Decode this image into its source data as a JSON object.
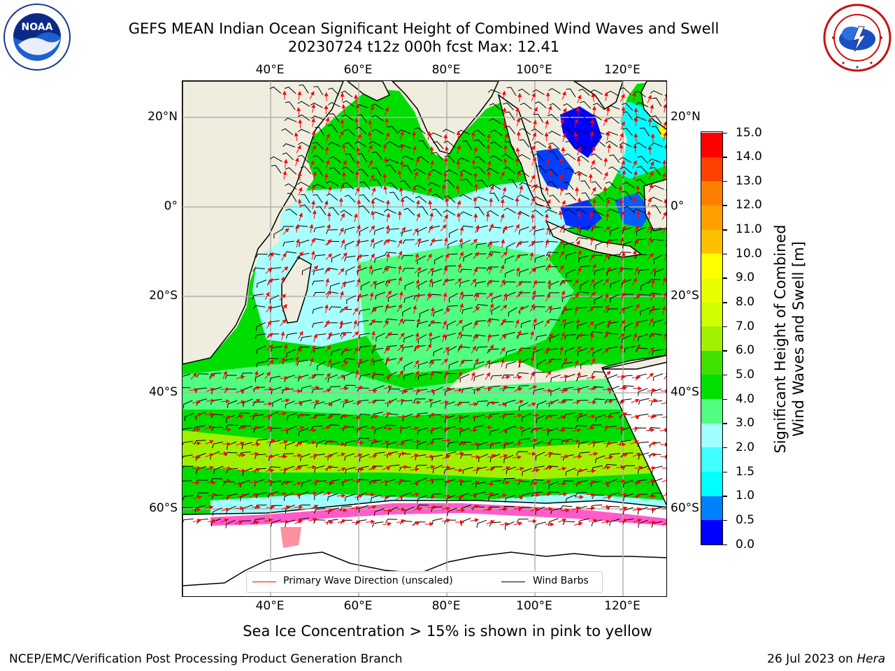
{
  "header": {
    "title_line1": "GEFS MEAN Indian Ocean Significant Height of Combined Wind Waves and Swell",
    "title_line2": "20230724 t12z 000h fcst   Max: 12.41"
  },
  "logos": {
    "left": {
      "icon": "noaa-logo-icon",
      "text": "NOAA"
    },
    "right": {
      "icon": "nws-logo-icon"
    }
  },
  "map": {
    "lon_ticks": [
      "40°E",
      "60°E",
      "80°E",
      "100°E",
      "120°E"
    ],
    "lat_ticks": [
      "20°N",
      "0°",
      "20°S",
      "40°S",
      "60°S"
    ],
    "lon_range": [
      20,
      130
    ],
    "lat_range": [
      -73,
      27
    ],
    "grid": true,
    "colors": {
      "land": "#efedde",
      "ice": "#ffffff",
      "wave_arrow": "#ff0000",
      "wind_barb": "#000000"
    }
  },
  "legend": {
    "primary_wave": "Primary Wave Direction (unscaled)",
    "wind_barbs": "Wind Barbs",
    "placement": "lower center"
  },
  "colorbar": {
    "title_line1": "Significant Height of Combined",
    "title_line2": "Wind Waves and Swell [m]",
    "labels": [
      "0.0",
      "0.5",
      "1.0",
      "1.5",
      "2.0",
      "3.0",
      "4.0",
      "5.0",
      "6.0",
      "7.0",
      "8.0",
      "9.0",
      "10.0",
      "11.0",
      "12.0",
      "13.0",
      "14.0",
      "15.0"
    ],
    "colors": [
      "#0000ff",
      "#0080ff",
      "#00ffff",
      "#40ffff",
      "#a0ffff",
      "#50ff80",
      "#00e000",
      "#40e000",
      "#a0f000",
      "#d0ff00",
      "#e8ff00",
      "#ffff00",
      "#ffc000",
      "#ffa000",
      "#ff8000",
      "#ff4000",
      "#ff0000"
    ]
  },
  "footer": {
    "note": "Sea Ice Concentration > 15% is shown in pink to yellow",
    "credit": "NCEP/EMC/Verification Post Processing Product Generation Branch",
    "date_prefix": "26 Jul 2023 on ",
    "host": "Hera"
  }
}
